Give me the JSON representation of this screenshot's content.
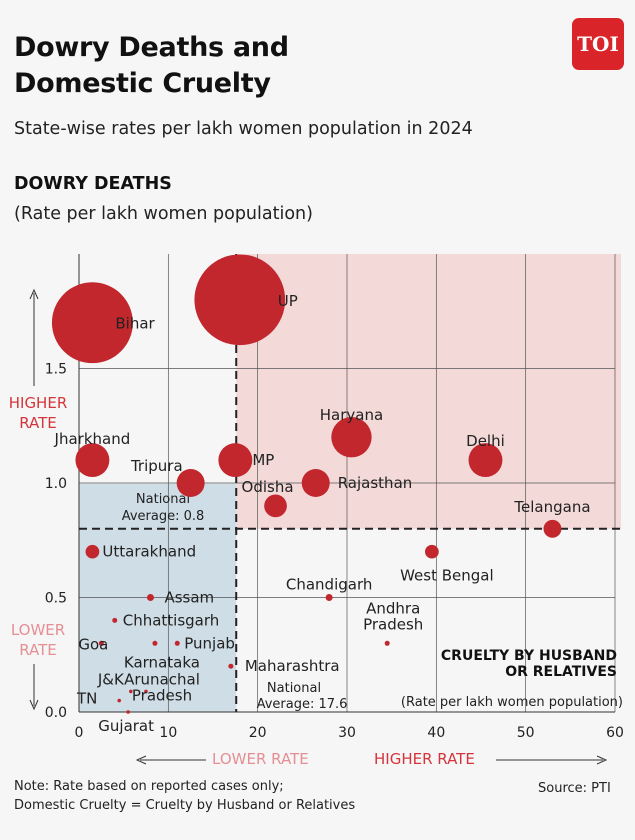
{
  "header": {
    "title_line1": "Dowry Deaths and",
    "title_line2": "Domestic Cruelty",
    "subtitle": "State-wise rates per lakh women population in 2024",
    "section_title": "DOWRY DEATHS",
    "section_subtitle": "(Rate per lakh women population)",
    "logo": "TOI"
  },
  "axes": {
    "y_higher": [
      "HIGHER",
      "RATE"
    ],
    "y_lower": [
      "LOWER",
      "RATE"
    ],
    "x_lower": "LOWER RATE",
    "x_higher": "HIGHER RATE",
    "x_title_line1": "CRUELTY BY HUSBAND",
    "x_title_line2": "OR RELATIVES",
    "x_title_sub": "(Rate per lakh women population)"
  },
  "footer": {
    "note_line1": "Note: Rate based on reported cases only;",
    "note_line2": "Domestic Cruelty = Cruelty by Husband or Relatives",
    "source": "Source: PTI"
  },
  "colors": {
    "bubble": "#c1272d",
    "high_quadrant": "#f4d9d9",
    "low_quadrant": "#cfdde6",
    "accent_red": "#d4343a",
    "accent_pink": "#e58f95"
  },
  "chart_data": {
    "type": "scatter",
    "xlabel": "CRUELTY BY HUSBAND OR RELATIVES (Rate per lakh women population)",
    "ylabel": "DOWRY DEATHS (Rate per lakh women population)",
    "xlim": [
      0,
      60
    ],
    "ylim": [
      0,
      2.0
    ],
    "x_ticks": [
      0,
      10,
      20,
      30,
      40,
      50,
      60
    ],
    "y_ticks": [
      0.0,
      0.5,
      1.0,
      1.5
    ],
    "grid": true,
    "bubble_size_encodes": "dowry death rate",
    "averages": [
      {
        "axis": "y",
        "value": 0.8,
        "label_line1": "National",
        "label_line2": "Average: 0.8"
      },
      {
        "axis": "x",
        "value": 17.6,
        "label_line1": "National",
        "label_line2": "Average: 17.6"
      }
    ],
    "points": [
      {
        "name": "UP",
        "x": 18.0,
        "y": 1.8
      },
      {
        "name": "Bihar",
        "x": 1.5,
        "y": 1.7
      },
      {
        "name": "Haryana",
        "x": 30.5,
        "y": 1.2
      },
      {
        "name": "Delhi",
        "x": 45.5,
        "y": 1.1
      },
      {
        "name": "Jharkhand",
        "x": 1.5,
        "y": 1.1
      },
      {
        "name": "MP",
        "x": 17.5,
        "y": 1.1
      },
      {
        "name": "Tripura",
        "x": 12.5,
        "y": 1.0
      },
      {
        "name": "Rajasthan",
        "x": 26.5,
        "y": 1.0
      },
      {
        "name": "Odisha",
        "x": 22.0,
        "y": 0.9
      },
      {
        "name": "Telangana",
        "x": 53.0,
        "y": 0.8
      },
      {
        "name": "West Bengal",
        "x": 39.5,
        "y": 0.7
      },
      {
        "name": "Uttarakhand",
        "x": 1.5,
        "y": 0.7
      },
      {
        "name": "Chandigarh",
        "x": 28.0,
        "y": 0.5
      },
      {
        "name": "Assam",
        "x": 8.0,
        "y": 0.5
      },
      {
        "name": "Chhattisgarh",
        "x": 4.0,
        "y": 0.4
      },
      {
        "name": "Andhra Pradesh",
        "x": 34.5,
        "y": 0.3
      },
      {
        "name": "Goa",
        "x": 2.5,
        "y": 0.3
      },
      {
        "name": "Karnataka",
        "x": 8.5,
        "y": 0.3
      },
      {
        "name": "Punjab",
        "x": 11.0,
        "y": 0.3
      },
      {
        "name": "Maharashtra",
        "x": 17.0,
        "y": 0.2
      },
      {
        "name": "J&K",
        "x": 5.8,
        "y": 0.09
      },
      {
        "name": "Arunachal Pradesh",
        "x": 7.5,
        "y": 0.09
      },
      {
        "name": "TN",
        "x": 4.5,
        "y": 0.05
      },
      {
        "name": "Gujarat",
        "x": 5.5,
        "y": 0.0
      }
    ]
  }
}
